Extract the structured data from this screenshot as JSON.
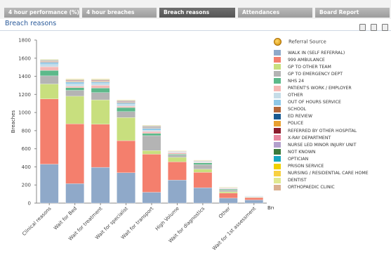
{
  "tabs": [
    "4 hour performance (%)",
    "4 hour breaches",
    "Breach reasons",
    "Attendances",
    "Board Report"
  ],
  "active_tab": 2,
  "page_title": "Breach reasons",
  "toolbar_icons": [
    "edit-icon",
    "save-icon",
    "print-icon"
  ],
  "legend_icon": "referral-source-icon",
  "chart_data": {
    "type": "bar",
    "stacked": true,
    "title": "",
    "xlabel": "Breach reason",
    "ylabel": "Breaches",
    "ylim": [
      0,
      1800
    ],
    "yticks": [
      0,
      200,
      400,
      600,
      800,
      1000,
      1200,
      1400,
      1600,
      1800
    ],
    "grid": false,
    "legend_title": "Referral Source",
    "legend_position": "right",
    "categories": [
      "Clinical reasons",
      "Wait for Bed",
      "Wait for treatment",
      "Wait for specialist",
      "Wait for transport",
      "High Volume",
      "Wait for diagnostics",
      "Other",
      "Wait for 1st assessment"
    ],
    "series": [
      {
        "name": "WALK IN (SELF REFERRAL)",
        "color": "#8fa9c9",
        "values": [
          430,
          215,
          395,
          335,
          120,
          255,
          170,
          55,
          35
        ]
      },
      {
        "name": "999 AMBULANCE",
        "color": "#f47f6d",
        "values": [
          720,
          660,
          475,
          355,
          420,
          200,
          170,
          55,
          25
        ]
      },
      {
        "name": "GP TO OTHER TEAM",
        "color": "#c8df7e",
        "values": [
          165,
          305,
          270,
          255,
          40,
          50,
          35,
          15,
          5
        ]
      },
      {
        "name": "GP TO EMERGENCY DEPT",
        "color": "#b4b4b4",
        "values": [
          90,
          65,
          80,
          65,
          165,
          25,
          50,
          20,
          5
        ]
      },
      {
        "name": "NHS 24",
        "color": "#5cb98a",
        "values": [
          60,
          30,
          50,
          45,
          25,
          10,
          20,
          10,
          3
        ]
      },
      {
        "name": "PATIENT'S WORK / EMPLOYER",
        "color": "#f5b8b5",
        "values": [
          40,
          15,
          30,
          15,
          20,
          15,
          5,
          5,
          2
        ]
      },
      {
        "name": "OTHER",
        "color": "#c6dde8",
        "values": [
          25,
          25,
          20,
          20,
          15,
          5,
          5,
          5,
          2
        ]
      },
      {
        "name": "OUT OF HOURS SERVICE",
        "color": "#8ec8e8",
        "values": [
          20,
          20,
          15,
          15,
          20,
          5,
          5,
          5,
          2
        ]
      },
      {
        "name": "SCHOOL",
        "color": "#b3673a",
        "values": [
          5,
          5,
          5,
          5,
          5,
          2,
          2,
          1,
          0
        ]
      },
      {
        "name": "ED REVIEW",
        "color": "#1a5a90",
        "values": [
          5,
          5,
          5,
          5,
          5,
          2,
          2,
          1,
          0
        ]
      },
      {
        "name": "POLICE",
        "color": "#e8a030",
        "values": [
          5,
          5,
          5,
          5,
          5,
          2,
          2,
          1,
          0
        ]
      },
      {
        "name": "REFERRED BY OTHER HOSPITAL",
        "color": "#8b1c2c",
        "values": [
          5,
          5,
          5,
          5,
          5,
          2,
          2,
          1,
          0
        ]
      },
      {
        "name": "X-RAY DEPARTMENT",
        "color": "#e888a0",
        "values": [
          0,
          0,
          0,
          0,
          0,
          0,
          0,
          0,
          0
        ]
      },
      {
        "name": "NURSE LED MINOR INJURY UNIT",
        "color": "#b3a0cc",
        "values": [
          5,
          5,
          5,
          5,
          5,
          2,
          2,
          1,
          0
        ]
      },
      {
        "name": "NOT KNOWN",
        "color": "#3b7a3b",
        "values": [
          5,
          5,
          5,
          5,
          5,
          2,
          2,
          1,
          0
        ]
      },
      {
        "name": "OPTICIAN",
        "color": "#18a8c0",
        "values": [
          0,
          0,
          0,
          0,
          0,
          0,
          0,
          0,
          0
        ]
      },
      {
        "name": "PRISON SERVICE",
        "color": "#f0d000",
        "values": [
          0,
          0,
          0,
          0,
          0,
          0,
          0,
          0,
          0
        ]
      },
      {
        "name": "NURSING / RESIDENTIAL CARE HOME",
        "color": "#f8d040",
        "values": [
          5,
          5,
          5,
          5,
          5,
          2,
          2,
          1,
          0
        ]
      },
      {
        "name": "DENTIST",
        "color": "#e0e890",
        "values": [
          0,
          0,
          0,
          0,
          0,
          0,
          0,
          0,
          0
        ]
      },
      {
        "name": "ORTHOPAEDIC CLINIC",
        "color": "#dab090",
        "values": [
          0,
          0,
          0,
          0,
          0,
          0,
          0,
          0,
          0
        ]
      }
    ]
  }
}
